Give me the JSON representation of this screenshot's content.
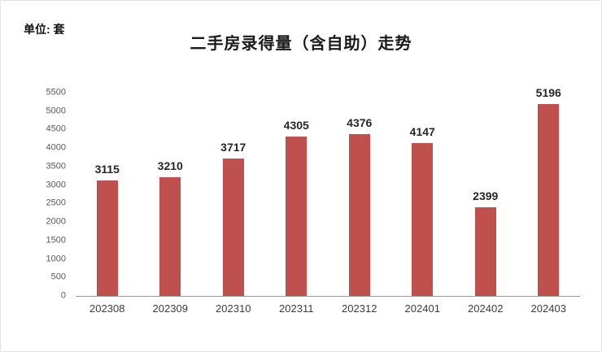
{
  "chart": {
    "unit_label": "单位: 套",
    "title": "二手房录得量（含自助）走势"
  },
  "chart_data": {
    "type": "bar",
    "title": "二手房录得量（含自助）走势",
    "categories": [
      "202308",
      "202309",
      "202310",
      "202311",
      "202312",
      "202401",
      "202402",
      "202403"
    ],
    "values": [
      3115,
      3210,
      3717,
      4305,
      4376,
      4147,
      2399,
      5196
    ],
    "xlabel": "",
    "ylabel": "单位: 套",
    "ylim": [
      0,
      5500
    ],
    "ytick_step": 500,
    "bar_color": "#C0504D",
    "grid": false,
    "legend": false,
    "data_labels": true
  }
}
